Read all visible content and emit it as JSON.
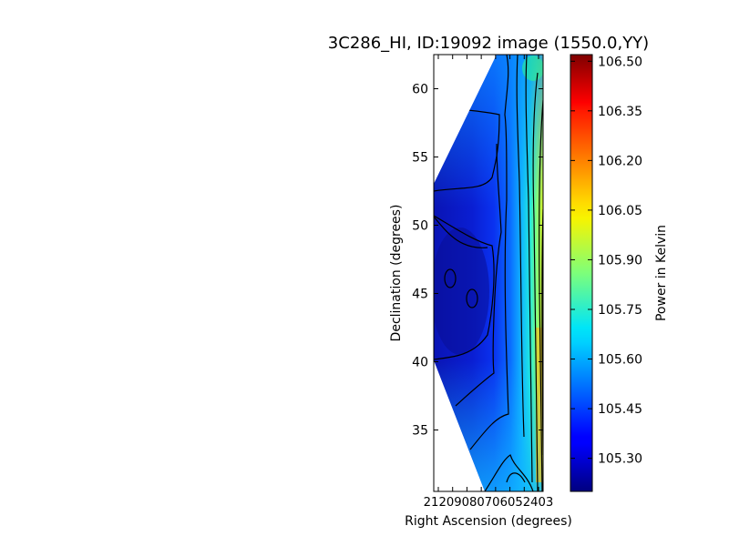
{
  "chart_data": {
    "type": "heatmap",
    "title": "3C286_HI, ID:19092 image (1550.0,YY)",
    "xlabel": "Right Ascension (degrees)",
    "ylabel": "Declination (degrees)",
    "colorbar_label": "Power in Kelvin",
    "colormap": "jet",
    "x_tick_labels": [
      "210",
      "209",
      "208",
      "207",
      "206",
      "205",
      "204",
      "203"
    ],
    "x_tick_text": "21209080706052403",
    "y_ticks": [
      35,
      40,
      45,
      50,
      55,
      60
    ],
    "y_tick_labels": [
      "35",
      "40",
      "45",
      "50",
      "55",
      "60"
    ],
    "ylim": [
      30.5,
      62.5
    ],
    "colorbar_ticks": [
      105.3,
      105.45,
      105.6,
      105.75,
      105.9,
      106.05,
      106.2,
      106.35,
      106.5
    ],
    "colorbar_tick_labels": [
      "105.30",
      "105.45",
      "105.60",
      "105.75",
      "105.90",
      "106.05",
      "106.20",
      "106.35",
      "106.50"
    ],
    "colorbar_range": [
      105.2,
      106.52
    ],
    "contour_lines": 10,
    "grid": false
  }
}
